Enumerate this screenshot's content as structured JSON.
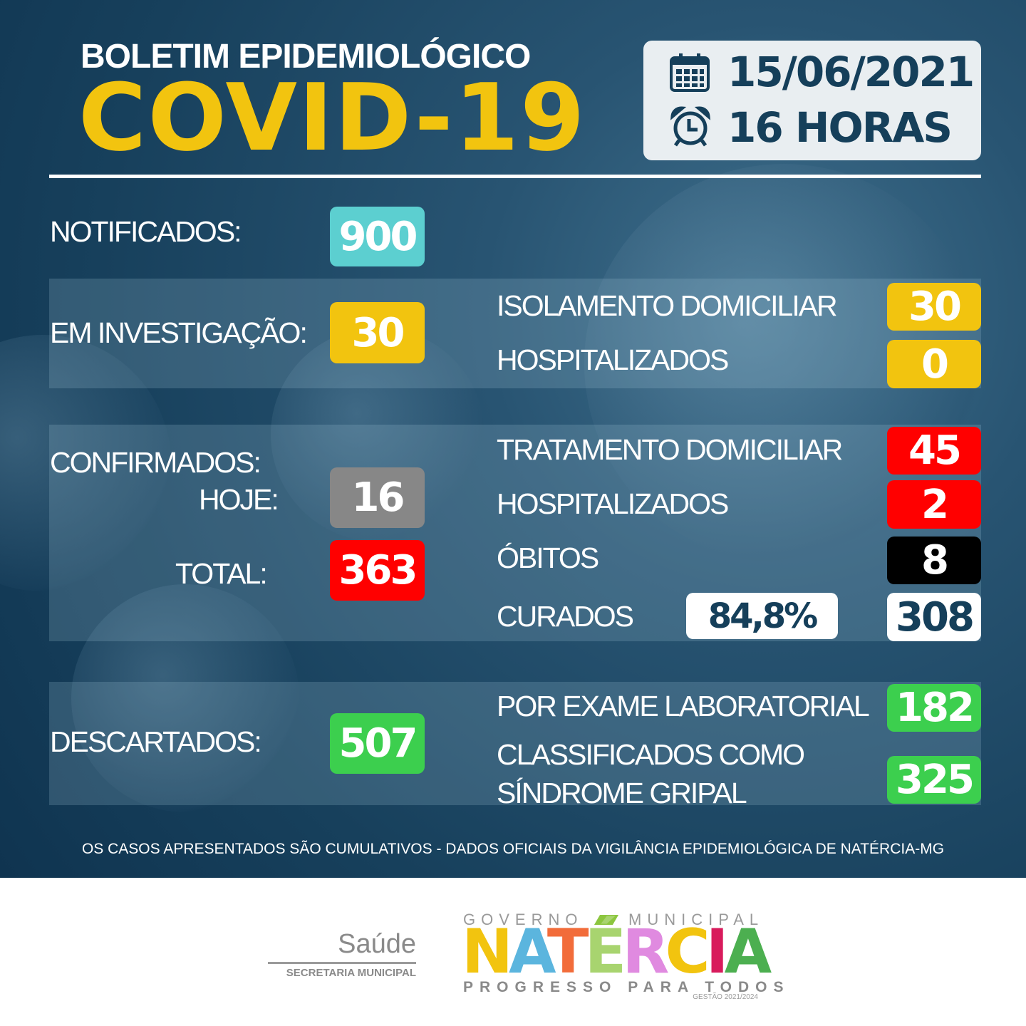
{
  "header": {
    "subtitle": "BOLETIM EPIDEMIOLÓGICO",
    "title": "COVID-19",
    "date": "15/06/2021",
    "time": "16 HORAS",
    "date_icon": "calendar-icon",
    "time_icon": "alarm-clock-icon"
  },
  "notificados": {
    "label": "NOTIFICADOS:",
    "value": "900"
  },
  "investigacao": {
    "label": "EM INVESTIGAÇÃO:",
    "value": "30",
    "isolamento_label": "ISOLAMENTO DOMICILIAR",
    "isolamento_value": "30",
    "hospitalizados_label": "HOSPITALIZADOS",
    "hospitalizados_value": "0"
  },
  "confirmados": {
    "label": "CONFIRMADOS:",
    "hoje_label": "HOJE:",
    "hoje_value": "16",
    "total_label": "TOTAL:",
    "total_value": "363",
    "tratamento_label": "TRATAMENTO DOMICILIAR",
    "tratamento_value": "45",
    "hospitalizados_label": "HOSPITALIZADOS",
    "hospitalizados_value": "2",
    "obitos_label": "ÓBITOS",
    "obitos_value": "8",
    "curados_label": "CURADOS",
    "curados_percent": "84,8%",
    "curados_value": "308"
  },
  "descartados": {
    "label": "DESCARTADOS:",
    "value": "507",
    "laboratorial_label": "POR EXAME LABORATORIAL",
    "laboratorial_value": "182",
    "sindrome_label_1": "CLASSIFICADOS COMO",
    "sindrome_label_2": "SÍNDROME GRIPAL",
    "sindrome_value": "325"
  },
  "footnote": "OS CASOS APRESENTADOS SÃO CUMULATIVOS - DADOS OFICIAIS DA VIGILÂNCIA EPIDEMIOLÓGICA DE NATÉRCIA-MG",
  "footer": {
    "saude": "Saúde",
    "secretaria": "SECRETARIA MUNICIPAL",
    "gov_left": "GOVERNO",
    "gov_right": "MUNICIPAL",
    "city": "NATÉRCIA",
    "slogan": "PROGRESSO PARA TODOS",
    "gestao": "GESTÃO 2021/2024"
  },
  "colors": {
    "yellow": "#f2c40f",
    "teal": "#5ccfd0",
    "red": "#ff0000",
    "gray": "#878787",
    "green": "#3ccf4e",
    "navy": "#153f5a",
    "black": "#000000"
  }
}
